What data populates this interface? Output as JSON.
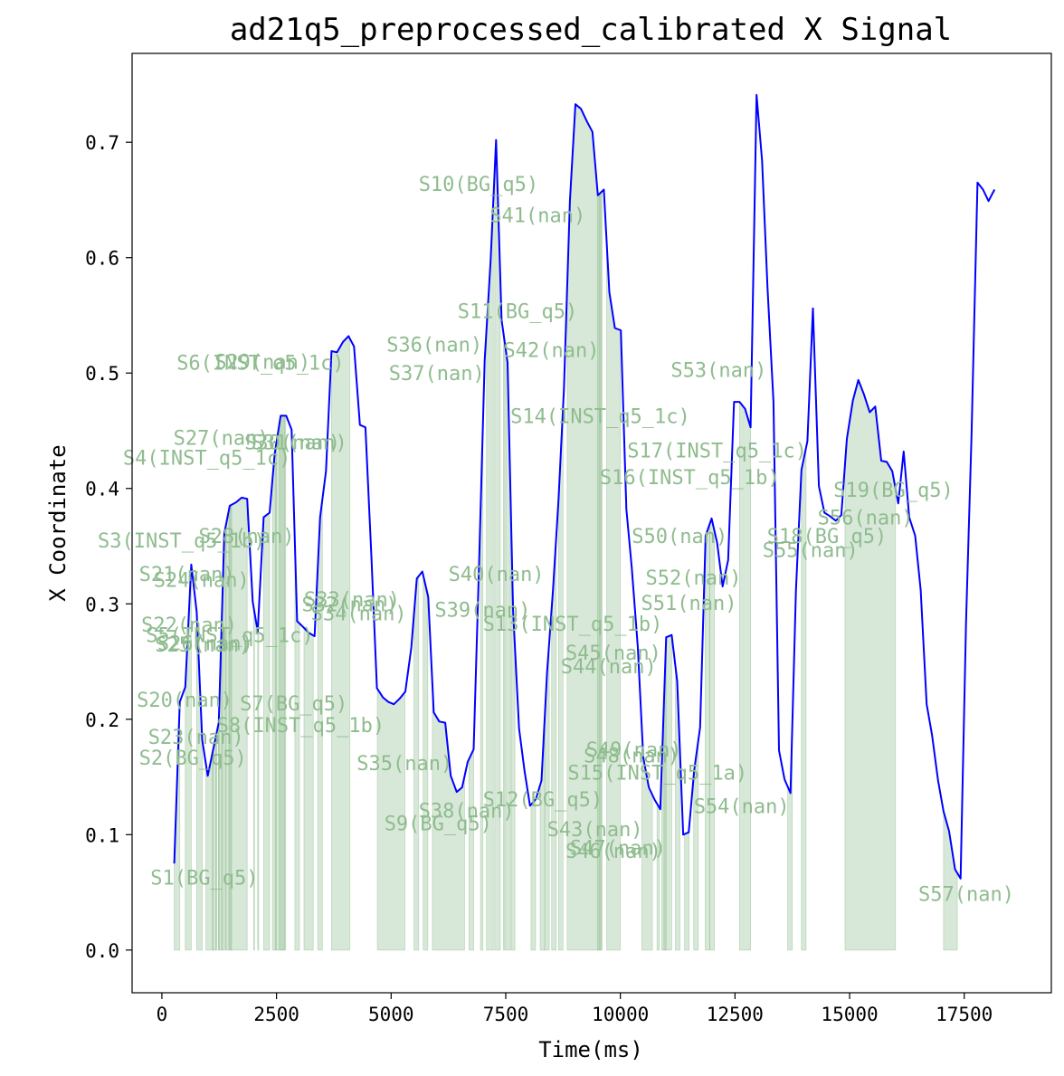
{
  "chart_data": {
    "type": "line",
    "title": "ad21q5_preprocessed_calibrated X Signal",
    "xlabel": "Time(ms)",
    "ylabel": "X Coordinate",
    "xlim": [
      -650,
      19400
    ],
    "ylim": [
      -0.037,
      0.777
    ],
    "xticks": [
      0,
      2500,
      5000,
      7500,
      10000,
      12500,
      15000,
      17500
    ],
    "xtick_labels": [
      "0",
      "2500",
      "5000",
      "7500",
      "10000",
      "12500",
      "15000",
      "17500"
    ],
    "yticks": [
      0.0,
      0.1,
      0.2,
      0.3,
      0.4,
      0.5,
      0.6,
      0.7
    ],
    "ytick_labels": [
      "0.0",
      "0.1",
      "0.2",
      "0.3",
      "0.4",
      "0.5",
      "0.6",
      "0.7"
    ],
    "grid": false,
    "line_color": "#0000ff",
    "fill_color": "#8fbc8f",
    "label_color": "#8fbc8f",
    "series": [
      {
        "values": [
          [
            270,
            0.075
          ],
          [
            390,
            0.215
          ],
          [
            510,
            0.228
          ],
          [
            640,
            0.334
          ],
          [
            760,
            0.293
          ],
          [
            880,
            0.182
          ],
          [
            1000,
            0.151
          ],
          [
            1130,
            0.176
          ],
          [
            1240,
            0.197
          ],
          [
            1360,
            0.361
          ],
          [
            1480,
            0.385
          ],
          [
            1620,
            0.388
          ],
          [
            1740,
            0.392
          ],
          [
            1860,
            0.391
          ],
          [
            1980,
            0.302
          ],
          [
            2090,
            0.276
          ],
          [
            2220,
            0.375
          ],
          [
            2350,
            0.379
          ],
          [
            2460,
            0.43
          ],
          [
            2590,
            0.463
          ],
          [
            2710,
            0.463
          ],
          [
            2830,
            0.451
          ],
          [
            2950,
            0.285
          ],
          [
            3080,
            0.28
          ],
          [
            3200,
            0.275
          ],
          [
            3330,
            0.272
          ],
          [
            3450,
            0.375
          ],
          [
            3580,
            0.415
          ],
          [
            3700,
            0.519
          ],
          [
            3820,
            0.518
          ],
          [
            3950,
            0.527
          ],
          [
            4070,
            0.532
          ],
          [
            4190,
            0.523
          ],
          [
            4320,
            0.455
          ],
          [
            4440,
            0.453
          ],
          [
            4570,
            0.341
          ],
          [
            4690,
            0.227
          ],
          [
            4820,
            0.219
          ],
          [
            4940,
            0.215
          ],
          [
            5060,
            0.213
          ],
          [
            5190,
            0.218
          ],
          [
            5310,
            0.224
          ],
          [
            5440,
            0.262
          ],
          [
            5560,
            0.322
          ],
          [
            5680,
            0.328
          ],
          [
            5810,
            0.306
          ],
          [
            5930,
            0.206
          ],
          [
            6050,
            0.198
          ],
          [
            6180,
            0.197
          ],
          [
            6300,
            0.151
          ],
          [
            6430,
            0.137
          ],
          [
            6550,
            0.141
          ],
          [
            6670,
            0.163
          ],
          [
            6800,
            0.174
          ],
          [
            6920,
            0.337
          ],
          [
            7040,
            0.511
          ],
          [
            7170,
            0.598
          ],
          [
            7290,
            0.702
          ],
          [
            7410,
            0.546
          ],
          [
            7540,
            0.509
          ],
          [
            7660,
            0.294
          ],
          [
            7790,
            0.192
          ],
          [
            7910,
            0.155
          ],
          [
            8030,
            0.125
          ],
          [
            8160,
            0.131
          ],
          [
            8280,
            0.147
          ],
          [
            8400,
            0.24
          ],
          [
            8530,
            0.312
          ],
          [
            8650,
            0.39
          ],
          [
            8770,
            0.486
          ],
          [
            8900,
            0.649
          ],
          [
            9020,
            0.733
          ],
          [
            9140,
            0.729
          ],
          [
            9270,
            0.718
          ],
          [
            9390,
            0.709
          ],
          [
            9510,
            0.654
          ],
          [
            9640,
            0.659
          ],
          [
            9760,
            0.57
          ],
          [
            9880,
            0.539
          ],
          [
            10010,
            0.537
          ],
          [
            10130,
            0.382
          ],
          [
            10250,
            0.331
          ],
          [
            10380,
            0.263
          ],
          [
            10500,
            0.167
          ],
          [
            10620,
            0.141
          ],
          [
            10750,
            0.13
          ],
          [
            10870,
            0.122
          ],
          [
            11000,
            0.271
          ],
          [
            11120,
            0.273
          ],
          [
            11240,
            0.233
          ],
          [
            11370,
            0.1
          ],
          [
            11490,
            0.102
          ],
          [
            11610,
            0.156
          ],
          [
            11740,
            0.193
          ],
          [
            11860,
            0.359
          ],
          [
            11990,
            0.374
          ],
          [
            12110,
            0.353
          ],
          [
            12230,
            0.315
          ],
          [
            12350,
            0.338
          ],
          [
            12480,
            0.475
          ],
          [
            12600,
            0.475
          ],
          [
            12720,
            0.469
          ],
          [
            12840,
            0.453
          ],
          [
            12970,
            0.741
          ],
          [
            13090,
            0.684
          ],
          [
            13210,
            0.574
          ],
          [
            13340,
            0.475
          ],
          [
            13460,
            0.173
          ],
          [
            13580,
            0.148
          ],
          [
            13710,
            0.136
          ],
          [
            13830,
            0.311
          ],
          [
            13950,
            0.416
          ],
          [
            14080,
            0.441
          ],
          [
            14200,
            0.556
          ],
          [
            14330,
            0.402
          ],
          [
            14450,
            0.379
          ],
          [
            14570,
            0.376
          ],
          [
            14700,
            0.372
          ],
          [
            14820,
            0.377
          ],
          [
            14940,
            0.443
          ],
          [
            15070,
            0.476
          ],
          [
            15190,
            0.494
          ],
          [
            15310,
            0.482
          ],
          [
            15440,
            0.466
          ],
          [
            15560,
            0.471
          ],
          [
            15690,
            0.424
          ],
          [
            15810,
            0.423
          ],
          [
            15930,
            0.415
          ],
          [
            16060,
            0.387
          ],
          [
            16180,
            0.432
          ],
          [
            16300,
            0.375
          ],
          [
            16430,
            0.359
          ],
          [
            16550,
            0.312
          ],
          [
            16680,
            0.213
          ],
          [
            16800,
            0.186
          ],
          [
            16930,
            0.147
          ],
          [
            17050,
            0.12
          ],
          [
            17170,
            0.103
          ],
          [
            17300,
            0.07
          ],
          [
            17420,
            0.062
          ],
          [
            17540,
            0.283
          ],
          [
            17660,
            0.446
          ],
          [
            17790,
            0.665
          ],
          [
            17910,
            0.659
          ],
          [
            18030,
            0.649
          ],
          [
            18160,
            0.659
          ]
        ]
      }
    ],
    "segments": [
      {
        "label": "S1(BG_q5)",
        "x0": 270,
        "x1": 390,
        "lx": -250,
        "ly": 0.063
      },
      {
        "label": "S2(BG_q5)",
        "x0": 510,
        "x1": 640,
        "lx": -500,
        "ly": 0.167
      },
      {
        "label": "S3(INST_q5_1b)",
        "x0": 760,
        "x1": 880,
        "lx": -1400,
        "ly": 0.355
      },
      {
        "label": "S4(INST_q5_1c)",
        "x0": 960,
        "x1": 1180,
        "lx": -850,
        "ly": 0.427
      },
      {
        "label": "S5(INST_q5_1c)",
        "x0": 1240,
        "x1": 1360,
        "lx": -350,
        "ly": 0.273
      },
      {
        "label": "S6(INST_q5_1c)",
        "x0": 1400,
        "x1": 1860,
        "lx": 320,
        "ly": 0.509
      },
      {
        "label": "S7(BG_q5)",
        "x0": 2220,
        "x1": 2350,
        "lx": 1700,
        "ly": 0.214
      },
      {
        "label": "S8(INST_q5_1b)",
        "x0": 2410,
        "x1": 2680,
        "lx": 1200,
        "ly": 0.195
      },
      {
        "label": "S9(BG_q5)",
        "x0": 5900,
        "x1": 6600,
        "lx": 4850,
        "ly": 0.11
      },
      {
        "label": "S10(BG_q5)",
        "x0": 7080,
        "x1": 7230,
        "lx": 5600,
        "ly": 0.664
      },
      {
        "label": "S11(BG_q5)",
        "x0": 7260,
        "x1": 7380,
        "lx": 6450,
        "ly": 0.554
      },
      {
        "label": "S12(BG_q5)",
        "x0": 7500,
        "x1": 7600,
        "lx": 7000,
        "ly": 0.131
      },
      {
        "label": "S13(INST_q5_1b)",
        "x0": 7620,
        "x1": 7700,
        "lx": 7000,
        "ly": 0.283
      },
      {
        "label": "S14(INST_q5_1c)",
        "x0": 8840,
        "x1": 9600,
        "lx": 7600,
        "ly": 0.463
      },
      {
        "label": "S15(INST_q5_1a)",
        "x0": 9700,
        "x1": 10000,
        "lx": 8850,
        "ly": 0.154
      },
      {
        "label": "S16(INST_q5_1b)",
        "x0": 10470,
        "x1": 10700,
        "lx": 9550,
        "ly": 0.41
      },
      {
        "label": "S17(INST_q5_1c)",
        "x0": 10900,
        "x1": 11120,
        "lx": 10150,
        "ly": 0.433
      },
      {
        "label": "S18(BG_q5)",
        "x0": 12600,
        "x1": 12840,
        "lx": 13200,
        "ly": 0.359
      },
      {
        "label": "S19(BG_q5)",
        "x0": 14900,
        "x1": 16000,
        "lx": 14650,
        "ly": 0.399
      },
      {
        "label": "S20(nan)",
        "x0": 1100,
        "x1": 1120,
        "lx": -550,
        "ly": 0.217
      },
      {
        "label": "S21(nan)",
        "x0": 1180,
        "x1": 1200,
        "lx": -500,
        "ly": 0.326
      },
      {
        "label": "S22(nan)",
        "x0": 1230,
        "x1": 1250,
        "lx": -450,
        "ly": 0.282
      },
      {
        "label": "S23(nan)",
        "x0": 1300,
        "x1": 1320,
        "lx": -300,
        "ly": 0.185
      },
      {
        "label": "S24(nan)",
        "x0": 1380,
        "x1": 1400,
        "lx": -180,
        "ly": 0.321
      },
      {
        "label": "S25(nan)",
        "x0": 1460,
        "x1": 1480,
        "lx": -150,
        "ly": 0.265
      },
      {
        "label": "S26(nan)",
        "x0": 1500,
        "x1": 1520,
        "lx": -100,
        "ly": 0.266
      },
      {
        "label": "S27(nan)",
        "x0": 2000,
        "x1": 2020,
        "lx": 250,
        "ly": 0.444
      },
      {
        "label": "S28(nan)",
        "x0": 2090,
        "x1": 2110,
        "lx": 800,
        "ly": 0.359
      },
      {
        "label": "S29(nan)",
        "x0": 2470,
        "x1": 2500,
        "lx": 1150,
        "ly": 0.51
      },
      {
        "label": "S30(nan)",
        "x0": 2560,
        "x1": 2700,
        "lx": 1800,
        "ly": 0.44
      },
      {
        "label": "S31(nan)",
        "x0": 2900,
        "x1": 3000,
        "lx": 1950,
        "ly": 0.44
      },
      {
        "label": "S32(nan)",
        "x0": 3100,
        "x1": 3300,
        "lx": 3050,
        "ly": 0.3
      },
      {
        "label": "S33(nan)",
        "x0": 3400,
        "x1": 3500,
        "lx": 3100,
        "ly": 0.304
      },
      {
        "label": "S34(nan)",
        "x0": 3700,
        "x1": 4100,
        "lx": 3250,
        "ly": 0.292
      },
      {
        "label": "S35(nan)",
        "x0": 4700,
        "x1": 5300,
        "lx": 4250,
        "ly": 0.162
      },
      {
        "label": "S36(nan)",
        "x0": 5500,
        "x1": 5600,
        "lx": 4900,
        "ly": 0.525
      },
      {
        "label": "S37(nan)",
        "x0": 5700,
        "x1": 5800,
        "lx": 4950,
        "ly": 0.5
      },
      {
        "label": "S38(nan)",
        "x0": 6700,
        "x1": 6800,
        "lx": 5600,
        "ly": 0.121
      },
      {
        "label": "S39(nan)",
        "x0": 6950,
        "x1": 7000,
        "lx": 5950,
        "ly": 0.295
      },
      {
        "label": "S40(nan)",
        "x0": 7450,
        "x1": 7480,
        "lx": 6250,
        "ly": 0.326
      },
      {
        "label": "S41(nan)",
        "x0": 9500,
        "x1": 9550,
        "lx": 7150,
        "ly": 0.637
      },
      {
        "label": "S42(nan)",
        "x0": 9550,
        "x1": 9580,
        "lx": 7450,
        "ly": 0.52
      },
      {
        "label": "S43(nan)",
        "x0": 8050,
        "x1": 8150,
        "lx": 8400,
        "ly": 0.105
      },
      {
        "label": "S44(nan)",
        "x0": 8250,
        "x1": 8350,
        "lx": 8700,
        "ly": 0.246
      },
      {
        "label": "S45(nan)",
        "x0": 8350,
        "x1": 8450,
        "lx": 8800,
        "ly": 0.258
      },
      {
        "label": "S46(nan)",
        "x0": 8500,
        "x1": 8600,
        "lx": 8800,
        "ly": 0.086
      },
      {
        "label": "S47(nan)",
        "x0": 8650,
        "x1": 8750,
        "lx": 8900,
        "ly": 0.089
      },
      {
        "label": "S48(nan)",
        "x0": 10800,
        "x1": 10850,
        "lx": 9200,
        "ly": 0.169
      },
      {
        "label": "S49(nan)",
        "x0": 10950,
        "x1": 11000,
        "lx": 9250,
        "ly": 0.174
      },
      {
        "label": "S50(nan)",
        "x0": 11200,
        "x1": 11300,
        "lx": 10250,
        "ly": 0.359
      },
      {
        "label": "S51(nan)",
        "x0": 11400,
        "x1": 11500,
        "lx": 10450,
        "ly": 0.301
      },
      {
        "label": "S52(nan)",
        "x0": 11600,
        "x1": 11700,
        "lx": 10550,
        "ly": 0.323
      },
      {
        "label": "S53(nan)",
        "x0": 11850,
        "x1": 11950,
        "lx": 11100,
        "ly": 0.503
      },
      {
        "label": "S54(nan)",
        "x0": 11950,
        "x1": 12050,
        "lx": 11600,
        "ly": 0.125
      },
      {
        "label": "S55(nan)",
        "x0": 13650,
        "x1": 13750,
        "lx": 13100,
        "ly": 0.347
      },
      {
        "label": "S56(nan)",
        "x0": 13950,
        "x1": 14050,
        "lx": 14300,
        "ly": 0.375
      },
      {
        "label": "S57(nan)",
        "x0": 17050,
        "x1": 17350,
        "lx": 16500,
        "ly": 0.049
      }
    ]
  }
}
